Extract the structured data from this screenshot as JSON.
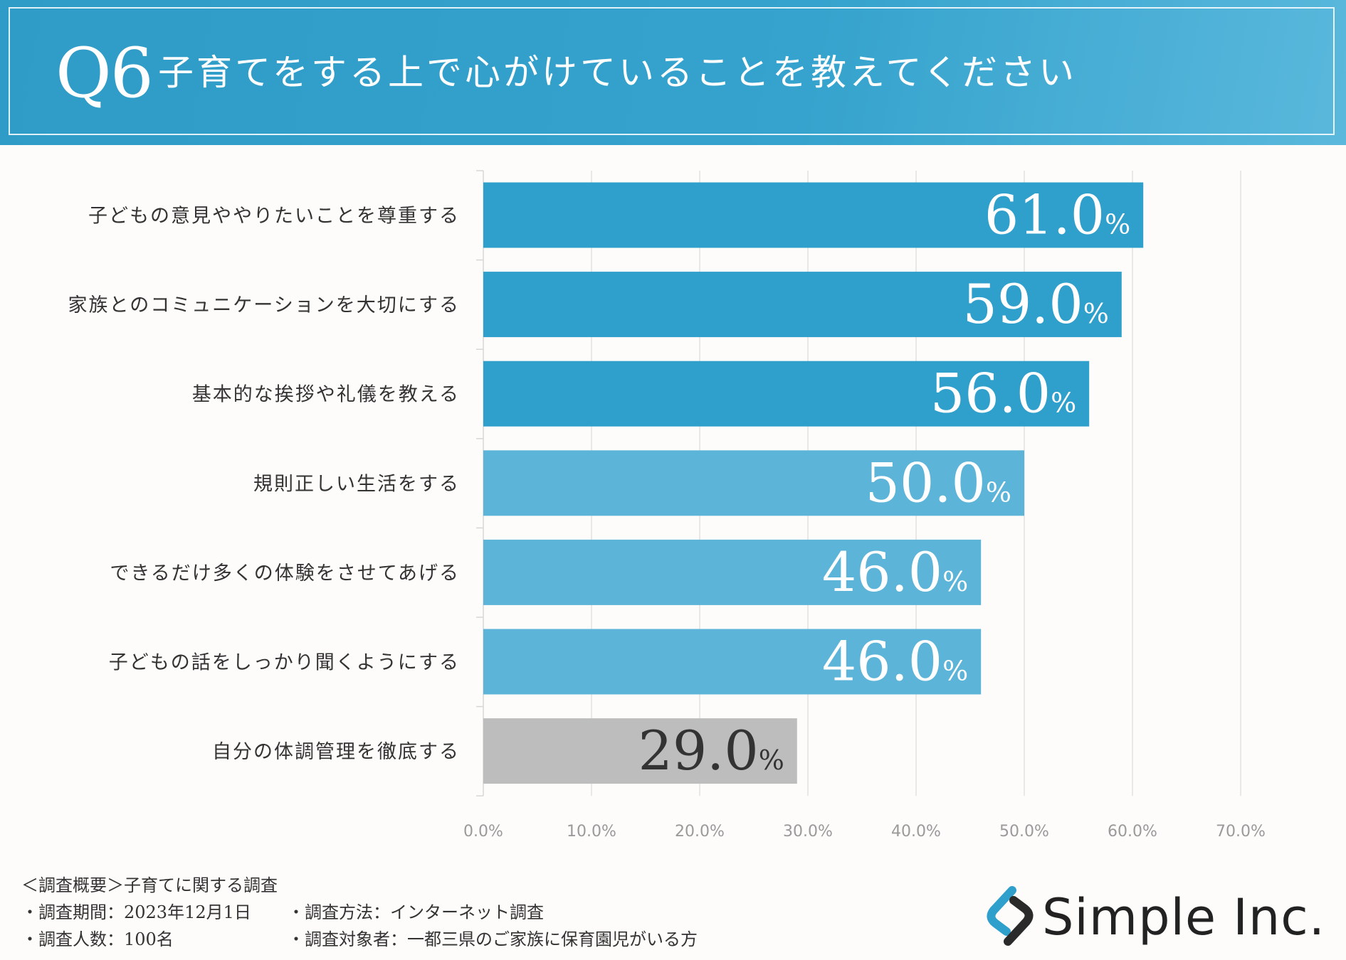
{
  "header": {
    "q_label": "Q6",
    "title": "子育てをする上で心がけていることを教えてください"
  },
  "chart_data": {
    "type": "bar",
    "orientation": "horizontal",
    "categories": [
      "子どもの意見ややりたいことを尊重する",
      "家族とのコミュニケーションを大切にする",
      "基本的な挨拶や礼儀を教える",
      "規則正しい生活をする",
      "できるだけ多くの体験をさせてあげる",
      "子どもの話をしっかり聞くようにする",
      "自分の体調管理を徹底する"
    ],
    "values": [
      61.0,
      59.0,
      56.0,
      50.0,
      46.0,
      46.0,
      29.0
    ],
    "value_labels": [
      "61.0",
      "59.0",
      "56.0",
      "50.0",
      "46.0",
      "46.0",
      "29.0"
    ],
    "value_unit": "%",
    "bar_colors": [
      "#2f9fcb",
      "#2f9fcb",
      "#2f9fcb",
      "#5cb4d8",
      "#5cb4d8",
      "#5cb4d8",
      "#bdbdbd"
    ],
    "label_colors": [
      "#ffffff",
      "#ffffff",
      "#ffffff",
      "#ffffff",
      "#ffffff",
      "#ffffff",
      "#333333"
    ],
    "x_ticks": [
      "0.0%",
      "10.0%",
      "20.0%",
      "30.0%",
      "40.0%",
      "50.0%",
      "60.0%",
      "70.0%"
    ],
    "xlim": [
      0,
      70
    ],
    "grid": true
  },
  "footer": {
    "summary_title": "＜調査概要＞子育てに関する調査",
    "period": "・調査期間：2023年12月1日",
    "method": "・調査方法：インターネット調査",
    "count": "・調査人数：100名",
    "target": "・調査対象者：一都三県のご家族に保育園児がいる方"
  },
  "logo": {
    "text": "Simple Inc.",
    "icon": "simple-logo-icon"
  }
}
